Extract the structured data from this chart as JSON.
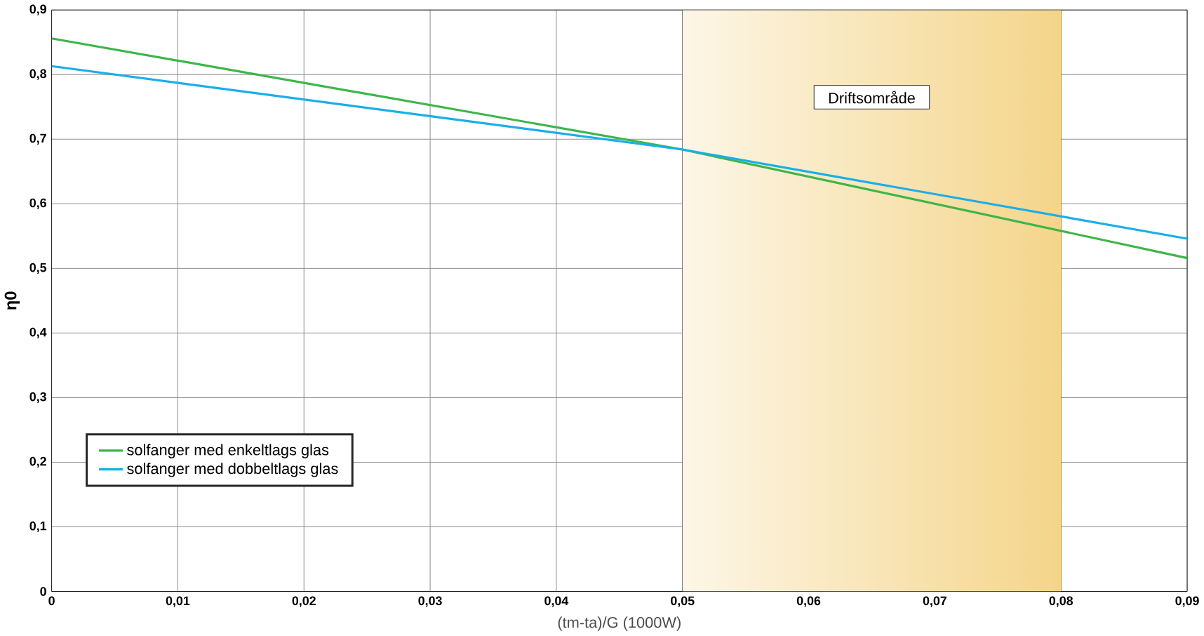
{
  "chart_data": {
    "type": "line",
    "xlabel": "(tm-ta)/G (1000W)",
    "ylabel": "η0",
    "xlim": [
      0,
      0.09
    ],
    "ylim": [
      0,
      0.9
    ],
    "xticks": [
      0,
      {
        "value": 0.01,
        "label": "0,01"
      },
      {
        "value": 0.02,
        "label": "0,02"
      },
      {
        "value": 0.03,
        "label": "0,03"
      },
      {
        "value": 0.04,
        "label": "0,04"
      },
      {
        "value": 0.05,
        "label": "0,05"
      },
      {
        "value": 0.06,
        "label": "0,06"
      },
      {
        "value": 0.07,
        "label": "0,07"
      },
      {
        "value": 0.08,
        "label": "0,08"
      },
      {
        "value": 0.09,
        "label": "0,09"
      }
    ],
    "yticks": [
      0,
      {
        "value": 0.1,
        "label": "0,1"
      },
      {
        "value": 0.2,
        "label": "0,2"
      },
      {
        "value": 0.3,
        "label": "0,3"
      },
      {
        "value": 0.4,
        "label": "0,4"
      },
      {
        "value": 0.5,
        "label": "0,5"
      },
      {
        "value": 0.6,
        "label": "0,6"
      },
      {
        "value": 0.7,
        "label": "0,7"
      },
      {
        "value": 0.8,
        "label": "0,8"
      },
      {
        "value": 0.9,
        "label": "0,9"
      }
    ],
    "x": [
      0,
      0.05,
      0.09
    ],
    "series": [
      {
        "name": "solfanger med enkeltlags glas",
        "color": "#3db54a",
        "values": [
          0.856,
          0.684,
          0.516
        ]
      },
      {
        "name": "solfanger med dobbeltlags glas",
        "color": "#1aaee8",
        "values": [
          0.813,
          0.684,
          0.546
        ]
      }
    ],
    "bands": [
      {
        "axis": "x",
        "from": 0.05,
        "to": 0.08,
        "label": "Driftsområde",
        "color": "#f4d58a"
      }
    ],
    "grid": true,
    "legend": "bottom left",
    "marker": "none",
    "line_style": "solid"
  }
}
